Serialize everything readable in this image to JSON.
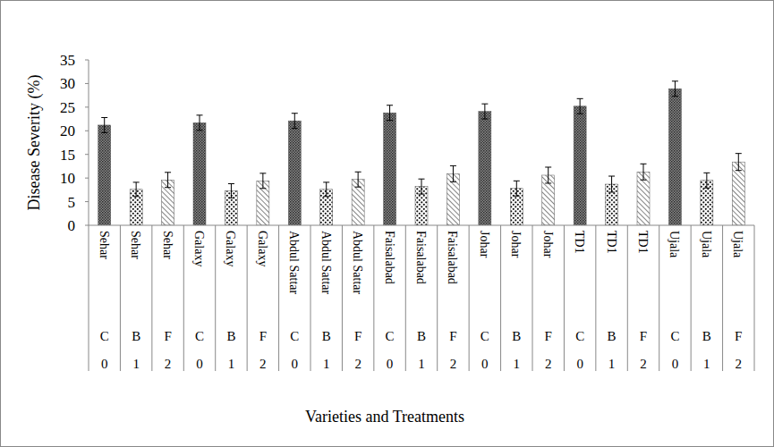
{
  "chart_data": {
    "type": "bar",
    "x_label": "Varieties and Treatments",
    "y_label": "Disease Severity (%)",
    "categories": [
      "Sehar",
      "Sehar",
      "Sehar",
      "Galaxy",
      "Galaxy",
      "Galaxy",
      "Abdul Sattar",
      "Abdul Sattar",
      "Abdul Sattar",
      "Faisalabad",
      "Faisalabad",
      "Faisalabad",
      "Johar",
      "Johar",
      "Johar",
      "TD1",
      "TD1",
      "TD1",
      "Ujala",
      "Ujala",
      "Ujala"
    ],
    "treatments": [
      "C",
      "B",
      "F",
      "C",
      "B",
      "F",
      "C",
      "B",
      "F",
      "C",
      "B",
      "F",
      "C",
      "B",
      "F",
      "C",
      "B",
      "F",
      "C",
      "B",
      "F"
    ],
    "codes": [
      0,
      1,
      2,
      0,
      1,
      2,
      0,
      1,
      2,
      0,
      1,
      2,
      0,
      1,
      2,
      0,
      1,
      2,
      0,
      1,
      2
    ],
    "values": [
      21.2,
      7.6,
      9.6,
      21.7,
      7.3,
      9.4,
      22.1,
      7.6,
      9.7,
      23.8,
      8.2,
      10.9,
      24.1,
      7.8,
      10.6,
      25.2,
      8.7,
      11.3,
      28.9,
      9.5,
      13.4
    ],
    "errors": [
      1.6,
      1.5,
      1.6,
      1.6,
      1.5,
      1.6,
      1.6,
      1.5,
      1.6,
      1.6,
      1.6,
      1.7,
      1.6,
      1.6,
      1.7,
      1.6,
      1.7,
      1.7,
      1.6,
      1.6,
      1.8
    ],
    "ylim": [
      0,
      35
    ],
    "yticks": [
      0,
      5,
      10,
      15,
      20,
      25,
      30,
      35
    ],
    "grid": false
  }
}
